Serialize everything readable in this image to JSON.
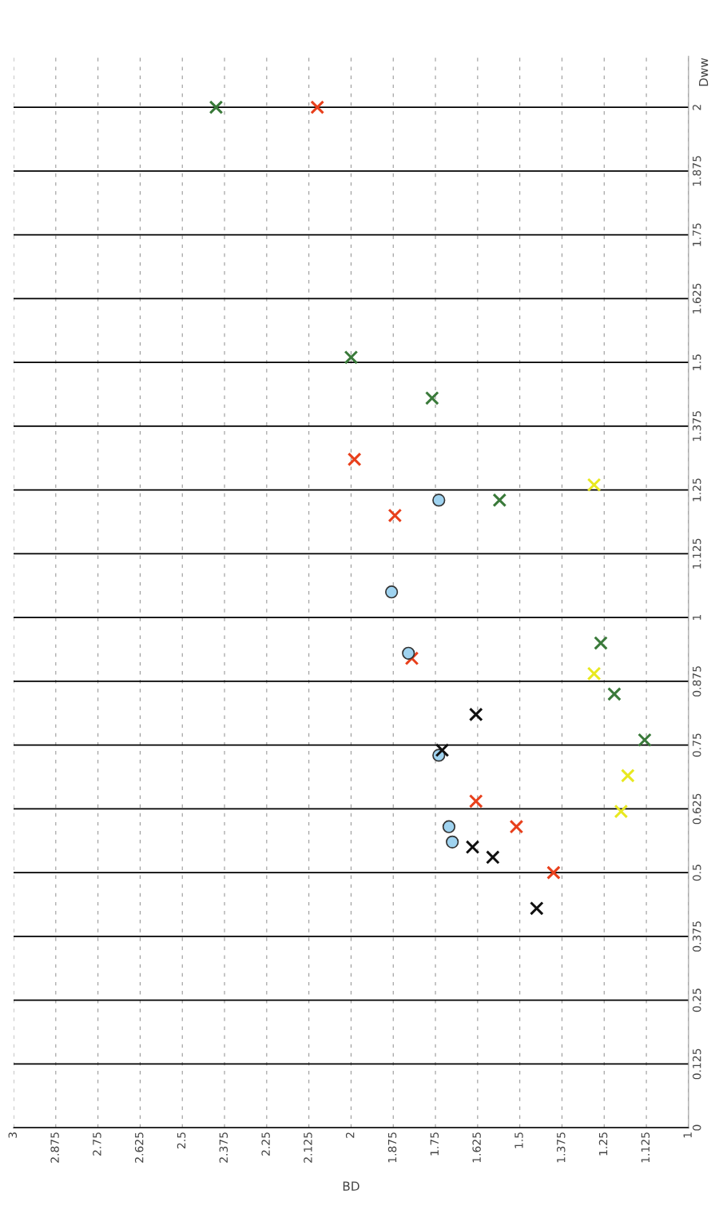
{
  "chart_data": {
    "type": "scatter",
    "xlabel": "BD",
    "ylabel": "Dww",
    "xlim": [
      3,
      1
    ],
    "ylim": [
      0,
      2.1
    ],
    "xticks": [
      3,
      2.875,
      2.75,
      2.625,
      2.5,
      2.375,
      2.25,
      2.125,
      2,
      1.875,
      1.75,
      1.625,
      1.5,
      1.375,
      1.25,
      1.125,
      1
    ],
    "yticks": [
      0,
      0.125,
      0.25,
      0.375,
      0.5,
      0.625,
      0.75,
      0.875,
      1,
      1.125,
      1.25,
      1.375,
      1.5,
      1.625,
      1.75,
      1.875,
      2
    ],
    "grid": true,
    "marker": "cross",
    "series": [
      {
        "color": "#3a7a3a",
        "x": [
          2.4,
          2.0,
          1.76,
          1.56,
          1.26,
          1.22,
          1.13
        ],
        "values": [
          2.0,
          1.51,
          1.43,
          1.23,
          0.95,
          0.85,
          0.76
        ]
      },
      {
        "color": "#e8401c",
        "x": [
          2.1,
          1.99,
          1.87,
          1.82,
          1.63,
          1.51,
          1.4
        ],
        "values": [
          2.0,
          1.31,
          1.2,
          0.92,
          0.64,
          0.59,
          0.5
        ]
      },
      {
        "color": "#9fd3f0",
        "marker": "circle",
        "x": [
          1.74,
          1.88,
          1.83,
          1.74,
          1.71,
          1.7
        ],
        "values": [
          1.23,
          1.05,
          0.93,
          0.73,
          0.59,
          0.56
        ]
      },
      {
        "color": "#111111",
        "x": [
          1.63,
          1.73,
          1.64,
          1.58,
          1.45
        ],
        "values": [
          0.81,
          0.74,
          0.55,
          0.53,
          0.43
        ]
      },
      {
        "color": "#e8e820",
        "x": [
          1.28,
          1.28,
          1.18,
          1.2
        ],
        "values": [
          1.26,
          0.89,
          0.69,
          0.62
        ]
      }
    ]
  }
}
